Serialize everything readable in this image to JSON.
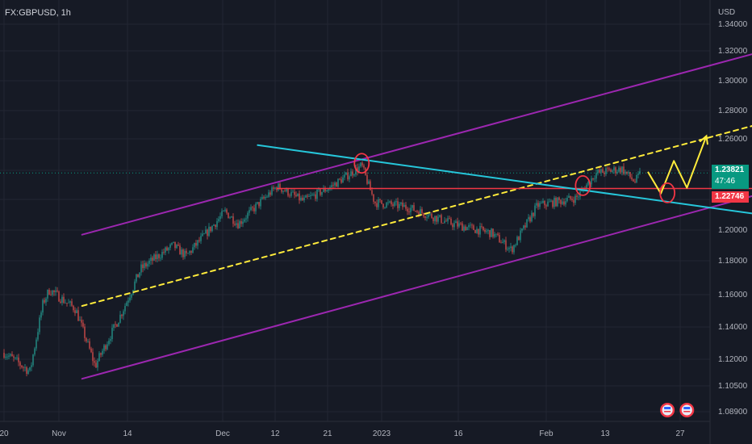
{
  "chart_data": {
    "type": "line",
    "symbol": "FX:GBPUSD, 1h",
    "currency": "USD",
    "x_ticks": [
      "20",
      "Nov",
      "14",
      "Dec",
      "12",
      "21",
      "2023",
      "16",
      "Feb",
      "13",
      "27"
    ],
    "y_ticks": [
      "1.34000",
      "1.32000",
      "1.30000",
      "1.28000",
      "1.26000",
      "1.24000",
      "1.22000",
      "1.20000",
      "1.18000",
      "1.16000",
      "1.14000",
      "1.12000",
      "1.10500",
      "1.08900"
    ],
    "ylim": [
      1.089,
      1.34
    ],
    "last_price": "1.23821",
    "countdown": "47:46",
    "level_price": "1.22746",
    "colors": {
      "background": "#161a25",
      "up_candle": "#26a69a",
      "down_candle": "#ef5350",
      "channel": "#9c27b0",
      "midline": "#ffeb3b",
      "trendline": "#26c6da",
      "level": "#f23645",
      "marker": "#f23645"
    },
    "price_path": [
      {
        "x": "Oct 20",
        "y": 1.124
      },
      {
        "x": "Oct 24",
        "y": 1.113
      },
      {
        "x": "Oct 26",
        "y": 1.155
      },
      {
        "x": "Oct 27",
        "y": 1.163
      },
      {
        "x": "Oct 31",
        "y": 1.151
      },
      {
        "x": "Nov 3",
        "y": 1.116
      },
      {
        "x": "Nov 7",
        "y": 1.148
      },
      {
        "x": "Nov 10",
        "y": 1.175
      },
      {
        "x": "Nov 15",
        "y": 1.19
      },
      {
        "x": "Nov 17",
        "y": 1.183
      },
      {
        "x": "Nov 23",
        "y": 1.212
      },
      {
        "x": "Nov 25",
        "y": 1.204
      },
      {
        "x": "Dec 1",
        "y": 1.229
      },
      {
        "x": "Dec 5",
        "y": 1.219
      },
      {
        "x": "Dec 9",
        "y": 1.228
      },
      {
        "x": "Dec 14",
        "y": 1.243
      },
      {
        "x": "Dec 16",
        "y": 1.218
      },
      {
        "x": "Dec 21",
        "y": 1.215
      },
      {
        "x": "Dec 28",
        "y": 1.204
      },
      {
        "x": "Jan 3",
        "y": 1.198
      },
      {
        "x": "Jan 6",
        "y": 1.187
      },
      {
        "x": "Jan 10",
        "y": 1.216
      },
      {
        "x": "Jan 16",
        "y": 1.221
      },
      {
        "x": "Jan 19",
        "y": 1.238
      },
      {
        "x": "Jan 23",
        "y": 1.241
      },
      {
        "x": "Jan 25",
        "y": 1.232
      },
      {
        "x": "Jan 26",
        "y": 1.239
      }
    ],
    "annotations": {
      "upper_channel": [
        {
          "x": "Nov 1",
          "y": 1.197
        },
        {
          "x": "Feb 20",
          "y": 1.328
        }
      ],
      "lower_channel": [
        {
          "x": "Nov 1",
          "y": 1.109
        },
        {
          "x": "Feb 20",
          "y": 1.232
        }
      ],
      "midline": [
        {
          "x": "Nov 1",
          "y": 1.153
        },
        {
          "x": "Feb 20",
          "y": 1.279
        }
      ],
      "trendline": [
        {
          "x": "Nov 28",
          "y": 1.256
        },
        {
          "x": "Feb 22",
          "y": 1.205
        }
      ],
      "level_line": [
        {
          "x": "Dec 1",
          "y": 1.2275
        },
        {
          "x": "Feb 28",
          "y": 1.2275
        }
      ],
      "projection": [
        {
          "x": "Jan 27",
          "y": 1.239
        },
        {
          "x": "Jan 29",
          "y": 1.224
        },
        {
          "x": "Jan 31",
          "y": 1.246
        },
        {
          "x": "Feb 2",
          "y": 1.228
        },
        {
          "x": "Feb 5",
          "y": 1.262
        }
      ],
      "circles": [
        {
          "x": "Dec 14",
          "y": 1.2445
        },
        {
          "x": "Jan 17",
          "y": 1.2295
        },
        {
          "x": "Jan 30",
          "y": 1.2245
        }
      ],
      "events": [
        "Jan 30",
        "Feb 2"
      ]
    }
  }
}
